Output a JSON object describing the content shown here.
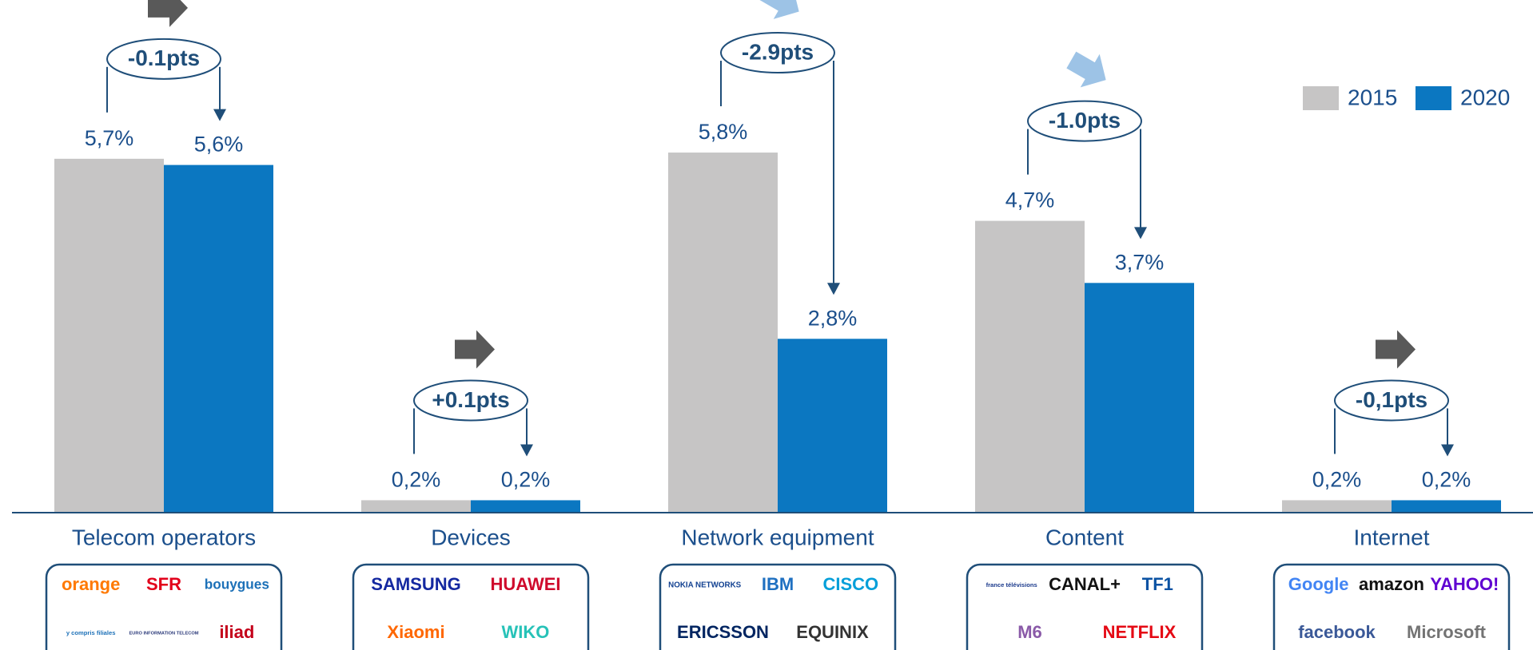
{
  "chart_data": {
    "type": "bar",
    "categories": [
      "Telecom operators",
      "Devices",
      "Network equipment",
      "Content",
      "Internet"
    ],
    "series": [
      {
        "name": "2015",
        "color": "#c6c5c5",
        "values": [
          5.7,
          0.2,
          5.8,
          4.7,
          0.2
        ],
        "value_labels": [
          "5,7%",
          "0,2%",
          "5,8%",
          "4,7%",
          "0,2%"
        ]
      },
      {
        "name": "2020",
        "color": "#0b77c1",
        "values": [
          5.6,
          0.2,
          2.8,
          3.7,
          0.2
        ],
        "value_labels": [
          "5,6%",
          "0,2%",
          "2,8%",
          "3,7%",
          "0,2%"
        ]
      }
    ],
    "annotations": [
      "-0.1pts",
      "+0.1pts",
      "-2.9pts",
      "-1.0pts",
      "-0,1pts"
    ],
    "ylim": [
      0,
      8
    ],
    "legend": "top-right"
  },
  "logos": [
    [
      {
        "text": "orange",
        "color": "#ff7900"
      },
      {
        "text": "SFR",
        "color": "#e2001a"
      },
      {
        "text": "bouygues",
        "color": "#1d71b8"
      },
      {
        "text": "y compris filiales",
        "color": "#1d71b8"
      },
      {
        "text": "EURO INFORMATION TELECOM",
        "color": "#2b3a7a"
      },
      {
        "text": "iliad",
        "color": "#c4001a"
      }
    ],
    [
      {
        "text": "SAMSUNG",
        "color": "#1428a0"
      },
      {
        "text": "HUAWEI",
        "color": "#cf0a2c"
      },
      {
        "text": "Xiaomi",
        "color": "#ff6700"
      },
      {
        "text": "WIKO",
        "color": "#27c2b8"
      }
    ],
    [
      {
        "text": "NOKIA NETWORKS",
        "color": "#124191"
      },
      {
        "text": "IBM",
        "color": "#1f70c1"
      },
      {
        "text": "CISCO",
        "color": "#049fd9"
      },
      {
        "text": "ERICSSON",
        "color": "#002561"
      },
      {
        "text": "EQUINIX",
        "color": "#333333"
      }
    ],
    [
      {
        "text": "france télévisions",
        "color": "#1b3a8c"
      },
      {
        "text": "CANAL+",
        "color": "#111111"
      },
      {
        "text": "TF1",
        "color": "#0a52a3"
      },
      {
        "text": "M6",
        "color": "#8a5aa8"
      },
      {
        "text": "NETFLIX",
        "color": "#e50914"
      }
    ],
    [
      {
        "text": "Google",
        "color": "#4285f4"
      },
      {
        "text": "amazon",
        "color": "#111111"
      },
      {
        "text": "YAHOO!",
        "color": "#5f01d1"
      },
      {
        "text": "facebook",
        "color": "#3b5998"
      },
      {
        "text": "Microsoft",
        "color": "#737373"
      }
    ]
  ]
}
